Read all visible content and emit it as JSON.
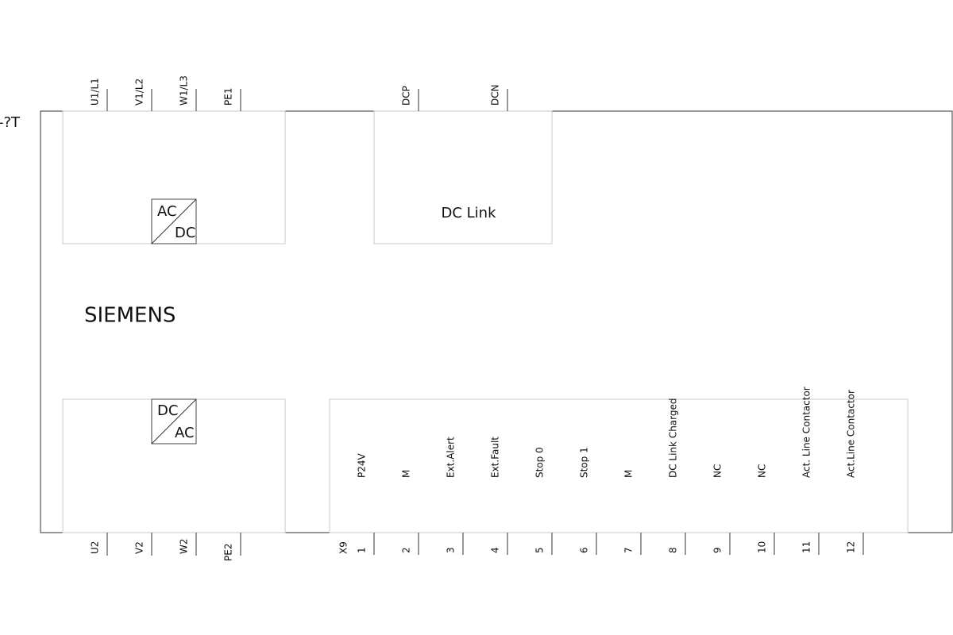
{
  "designation": "-?T",
  "brand": "SIEMENS",
  "top_terminals": [
    "U1/L1",
    "V1/L2",
    "W1/L3",
    "PE1"
  ],
  "dc_terminals": [
    "DCP",
    "DCN"
  ],
  "rectifier": {
    "top": "AC",
    "bottom": "DC"
  },
  "dc_link": "DC Link",
  "inverter": {
    "top": "DC",
    "bottom": "AC"
  },
  "bottom_terminals": [
    "U2",
    "V2",
    "W2",
    "PE2"
  ],
  "connector": "X9",
  "signals": [
    {
      "pin": 1,
      "label": "P24V"
    },
    {
      "pin": 2,
      "label": "M"
    },
    {
      "pin": 3,
      "label": "Ext.Alert"
    },
    {
      "pin": 4,
      "label": "Ext.Fault"
    },
    {
      "pin": 5,
      "label": "Stop 0"
    },
    {
      "pin": 6,
      "label": "Stop 1"
    },
    {
      "pin": 7,
      "label": "M"
    },
    {
      "pin": 8,
      "label": "DC Link Charged"
    },
    {
      "pin": 9,
      "label": "NC"
    },
    {
      "pin": 10,
      "label": "NC"
    },
    {
      "pin": 11,
      "label": "Act. Line Contactor"
    },
    {
      "pin": 12,
      "label": "Act.Line Contactor"
    }
  ]
}
